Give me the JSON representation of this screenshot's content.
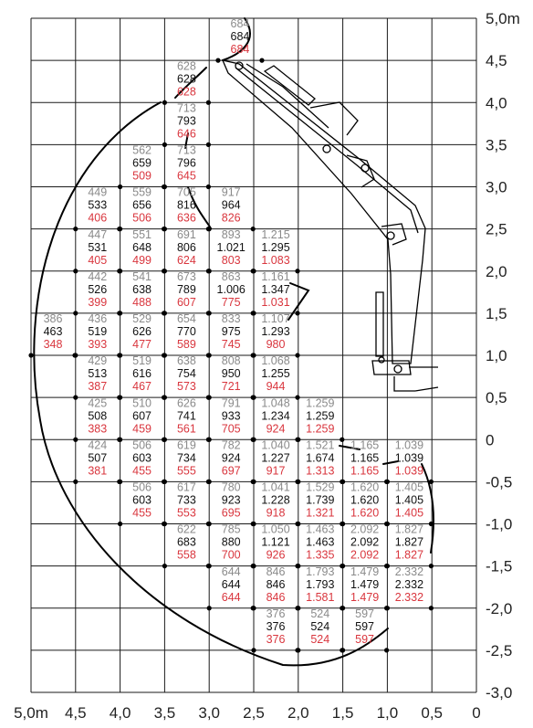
{
  "chart_data": {
    "type": "load-chart",
    "x_ticks": [
      "5,0m",
      "4,5",
      "4,0",
      "3,5",
      "3,0",
      "2,5",
      "2,0",
      "1,5",
      "1,0",
      "0,5",
      "0"
    ],
    "y_ticks": [
      "5,0m",
      "4,5",
      "4,0",
      "3,5",
      "3,0",
      "2,5",
      "2,0",
      "1,5",
      "1,0",
      "0,5",
      "0",
      "-0,5",
      "-1,0",
      "-1,5",
      "-2,0",
      "-2,5",
      "-3,0"
    ],
    "x_range": [
      5.0,
      0.0
    ],
    "y_range": [
      -3.0,
      5.0
    ],
    "grid": true,
    "colors": {
      "top": "#8a8a8a",
      "middle": "#111111",
      "bottom": "#d9363e",
      "grid": "#1a1a1a"
    },
    "cells": [
      {
        "x": 2.9,
        "y": 4.5,
        "values": [
          "684",
          "684",
          "684"
        ]
      },
      {
        "x": 3.5,
        "y": 4.0,
        "values": [
          "628",
          "628",
          "628"
        ]
      },
      {
        "x": 3.5,
        "y": 3.5,
        "values": [
          "713",
          "793",
          "646"
        ]
      },
      {
        "x": 4.0,
        "y": 3.0,
        "values": [
          "562",
          "659",
          "509"
        ]
      },
      {
        "x": 3.5,
        "y": 3.0,
        "values": [
          "713",
          "796",
          "645"
        ]
      },
      {
        "x": 4.5,
        "y": 2.5,
        "values": [
          "449",
          "533",
          "406"
        ]
      },
      {
        "x": 4.0,
        "y": 2.5,
        "values": [
          "559",
          "656",
          "506"
        ]
      },
      {
        "x": 3.5,
        "y": 2.5,
        "values": [
          "705",
          "816",
          "636"
        ]
      },
      {
        "x": 3.0,
        "y": 2.5,
        "values": [
          "917",
          "964",
          "826"
        ]
      },
      {
        "x": 4.5,
        "y": 2.0,
        "values": [
          "447",
          "531",
          "405"
        ]
      },
      {
        "x": 4.0,
        "y": 2.0,
        "values": [
          "551",
          "648",
          "499"
        ]
      },
      {
        "x": 3.5,
        "y": 2.0,
        "values": [
          "691",
          "806",
          "624"
        ]
      },
      {
        "x": 3.0,
        "y": 2.0,
        "values": [
          "893",
          "1.021",
          "803"
        ]
      },
      {
        "x": 2.5,
        "y": 2.0,
        "values": [
          "1.215",
          "1.295",
          "1.083"
        ]
      },
      {
        "x": 4.5,
        "y": 1.5,
        "values": [
          "442",
          "526",
          "399"
        ]
      },
      {
        "x": 4.0,
        "y": 1.5,
        "values": [
          "541",
          "638",
          "488"
        ]
      },
      {
        "x": 3.5,
        "y": 1.5,
        "values": [
          "673",
          "789",
          "607"
        ]
      },
      {
        "x": 3.0,
        "y": 1.5,
        "values": [
          "863",
          "1.006",
          "775"
        ]
      },
      {
        "x": 2.5,
        "y": 1.5,
        "values": [
          "1.161",
          "1.347",
          "1.031"
        ]
      },
      {
        "x": 5.0,
        "y": 1.0,
        "values": [
          "386",
          "463",
          "348"
        ]
      },
      {
        "x": 4.5,
        "y": 1.0,
        "values": [
          "436",
          "519",
          "393"
        ]
      },
      {
        "x": 4.0,
        "y": 1.0,
        "values": [
          "529",
          "626",
          "477"
        ]
      },
      {
        "x": 3.5,
        "y": 1.0,
        "values": [
          "654",
          "770",
          "589"
        ]
      },
      {
        "x": 3.0,
        "y": 1.0,
        "values": [
          "833",
          "975",
          "745"
        ]
      },
      {
        "x": 2.5,
        "y": 1.0,
        "values": [
          "1.107",
          "1.293",
          "980"
        ]
      },
      {
        "x": 4.5,
        "y": 0.5,
        "values": [
          "429",
          "513",
          "387"
        ]
      },
      {
        "x": 4.0,
        "y": 0.5,
        "values": [
          "519",
          "616",
          "467"
        ]
      },
      {
        "x": 3.5,
        "y": 0.5,
        "values": [
          "638",
          "754",
          "573"
        ]
      },
      {
        "x": 3.0,
        "y": 0.5,
        "values": [
          "808",
          "950",
          "721"
        ]
      },
      {
        "x": 2.5,
        "y": 0.5,
        "values": [
          "1.068",
          "1.255",
          "944"
        ]
      },
      {
        "x": 4.5,
        "y": 0.0,
        "values": [
          "425",
          "508",
          "383"
        ]
      },
      {
        "x": 4.0,
        "y": 0.0,
        "values": [
          "510",
          "607",
          "459"
        ]
      },
      {
        "x": 3.5,
        "y": 0.0,
        "values": [
          "626",
          "741",
          "561"
        ]
      },
      {
        "x": 3.0,
        "y": 0.0,
        "values": [
          "791",
          "933",
          "705"
        ]
      },
      {
        "x": 2.5,
        "y": 0.0,
        "values": [
          "1.048",
          "1.234",
          "924"
        ]
      },
      {
        "x": 2.0,
        "y": 0.0,
        "values": [
          "1.259",
          "1.259",
          "1.259"
        ]
      },
      {
        "x": 4.5,
        "y": -0.5,
        "values": [
          "424",
          "507",
          "381"
        ]
      },
      {
        "x": 4.0,
        "y": -0.5,
        "values": [
          "506",
          "603",
          "455"
        ]
      },
      {
        "x": 3.5,
        "y": -0.5,
        "values": [
          "619",
          "734",
          "555"
        ]
      },
      {
        "x": 3.0,
        "y": -0.5,
        "values": [
          "782",
          "924",
          "697"
        ]
      },
      {
        "x": 2.5,
        "y": -0.5,
        "values": [
          "1.040",
          "1.227",
          "917"
        ]
      },
      {
        "x": 2.0,
        "y": -0.5,
        "values": [
          "1.521",
          "1.674",
          "1.313"
        ]
      },
      {
        "x": 1.5,
        "y": -0.5,
        "values": [
          "1.165",
          "1.165",
          "1.165"
        ]
      },
      {
        "x": 1.0,
        "y": -0.5,
        "values": [
          "1.039",
          "1.039",
          "1.039"
        ]
      },
      {
        "x": 4.0,
        "y": -1.0,
        "values": [
          "506",
          "603",
          "455"
        ]
      },
      {
        "x": 3.5,
        "y": -1.0,
        "values": [
          "617",
          "733",
          "553"
        ]
      },
      {
        "x": 3.0,
        "y": -1.0,
        "values": [
          "780",
          "923",
          "695"
        ]
      },
      {
        "x": 2.5,
        "y": -1.0,
        "values": [
          "1.041",
          "1.228",
          "918"
        ]
      },
      {
        "x": 2.0,
        "y": -1.0,
        "values": [
          "1.529",
          "1.739",
          "1.321"
        ]
      },
      {
        "x": 1.5,
        "y": -1.0,
        "values": [
          "1.620",
          "1.620",
          "1.620"
        ]
      },
      {
        "x": 1.0,
        "y": -1.0,
        "values": [
          "1.405",
          "1.405",
          "1.405"
        ]
      },
      {
        "x": 3.5,
        "y": -1.5,
        "values": [
          "622",
          "683",
          "558"
        ]
      },
      {
        "x": 3.0,
        "y": -1.5,
        "values": [
          "785",
          "880",
          "700"
        ]
      },
      {
        "x": 2.5,
        "y": -1.5,
        "values": [
          "1.050",
          "1.121",
          "926"
        ]
      },
      {
        "x": 2.0,
        "y": -1.5,
        "values": [
          "1.463",
          "1.463",
          "1.335"
        ]
      },
      {
        "x": 1.5,
        "y": -1.5,
        "values": [
          "2.092",
          "2.092",
          "2.092"
        ]
      },
      {
        "x": 1.0,
        "y": -1.5,
        "values": [
          "1.827",
          "1.827",
          "1.827"
        ]
      },
      {
        "x": 3.0,
        "y": -2.0,
        "values": [
          "644",
          "644",
          "644"
        ]
      },
      {
        "x": 2.5,
        "y": -2.0,
        "values": [
          "846",
          "846",
          "846"
        ]
      },
      {
        "x": 2.0,
        "y": -2.0,
        "values": [
          "1.793",
          "1.793",
          "1.581"
        ]
      },
      {
        "x": 1.5,
        "y": -2.0,
        "values": [
          "1.479",
          "1.479",
          "1.479"
        ]
      },
      {
        "x": 1.0,
        "y": -2.0,
        "values": [
          "2.332",
          "2.332",
          "2.332"
        ]
      },
      {
        "x": 2.5,
        "y": -2.5,
        "values": [
          "376",
          "376",
          "376"
        ]
      },
      {
        "x": 2.0,
        "y": -2.5,
        "values": [
          "524",
          "524",
          "524"
        ]
      },
      {
        "x": 1.5,
        "y": -2.5,
        "values": [
          "597",
          "597",
          "597"
        ]
      }
    ]
  }
}
